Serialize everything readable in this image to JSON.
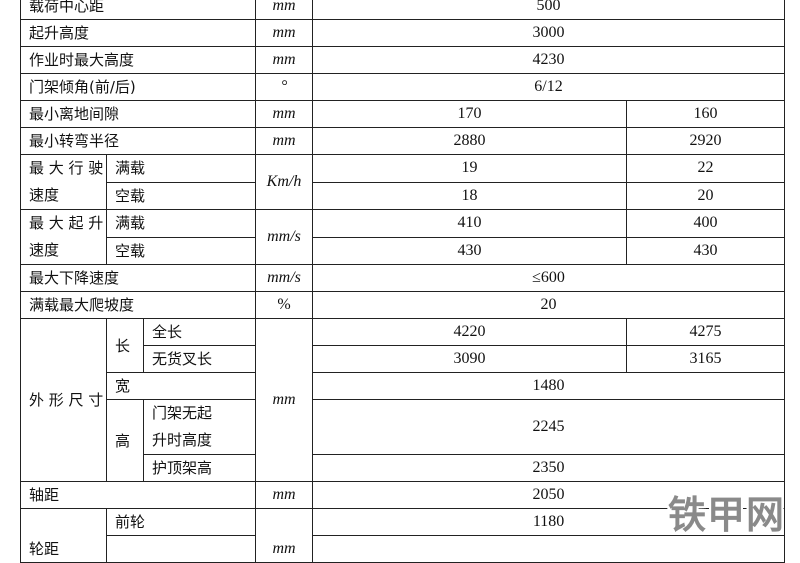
{
  "rows": {
    "load_center": {
      "label": "载荷中心距",
      "unit": "mm",
      "value": "500"
    },
    "lift_height": {
      "label": "起升高度",
      "unit": "mm",
      "value": "3000"
    },
    "max_work_height": {
      "label": "作业时最大高度",
      "unit": "mm",
      "value": "4230"
    },
    "mast_tilt": {
      "label": "门架倾角(前/后)",
      "unit": "°",
      "value": "6/12"
    },
    "ground_clearance": {
      "label": "最小离地间隙",
      "unit": "mm",
      "value_a": "170",
      "value_b": "160"
    },
    "turning_radius": {
      "label": "最小转弯半径",
      "unit": "mm",
      "value_a": "2880",
      "value_b": "2920"
    },
    "travel_speed": {
      "label": "最 大 行 驶速度",
      "unit": "Km/h",
      "laden": "满载",
      "unladen": "空载",
      "laden_a": "19",
      "laden_b": "22",
      "unladen_a": "18",
      "unladen_b": "20"
    },
    "lift_speed": {
      "label": "最 大 起 升速度",
      "unit": "mm/s",
      "laden": "满载",
      "unladen": "空载",
      "laden_a": "410",
      "laden_b": "400",
      "unladen_a": "430",
      "unladen_b": "430"
    },
    "lowering_speed": {
      "label": "最大下降速度",
      "unit": "mm/s",
      "value": "≤600"
    },
    "gradeability": {
      "label": "满载最大爬坡度",
      "unit": "%",
      "value": "20"
    },
    "dimensions": {
      "label": "外 形 尺 寸",
      "unit": "mm",
      "length": "长",
      "overall_length": "全长",
      "overall_length_a": "4220",
      "overall_length_b": "4275",
      "length_no_fork": "无货叉长",
      "length_no_fork_a": "3090",
      "length_no_fork_b": "3165",
      "width": "宽",
      "width_value": "1480",
      "height": "高",
      "mast_lowered": "门架无起升时高度",
      "mast_lowered_value": "2245",
      "overhead_guard": "护顶架高",
      "overhead_guard_value": "2350"
    },
    "wheelbase": {
      "label": "轴距",
      "unit": "mm",
      "value": "2050"
    },
    "tread": {
      "label": "轮距",
      "unit": "mm",
      "front": "前轮",
      "front_value": "1180"
    }
  },
  "watermark": "铁甲网"
}
